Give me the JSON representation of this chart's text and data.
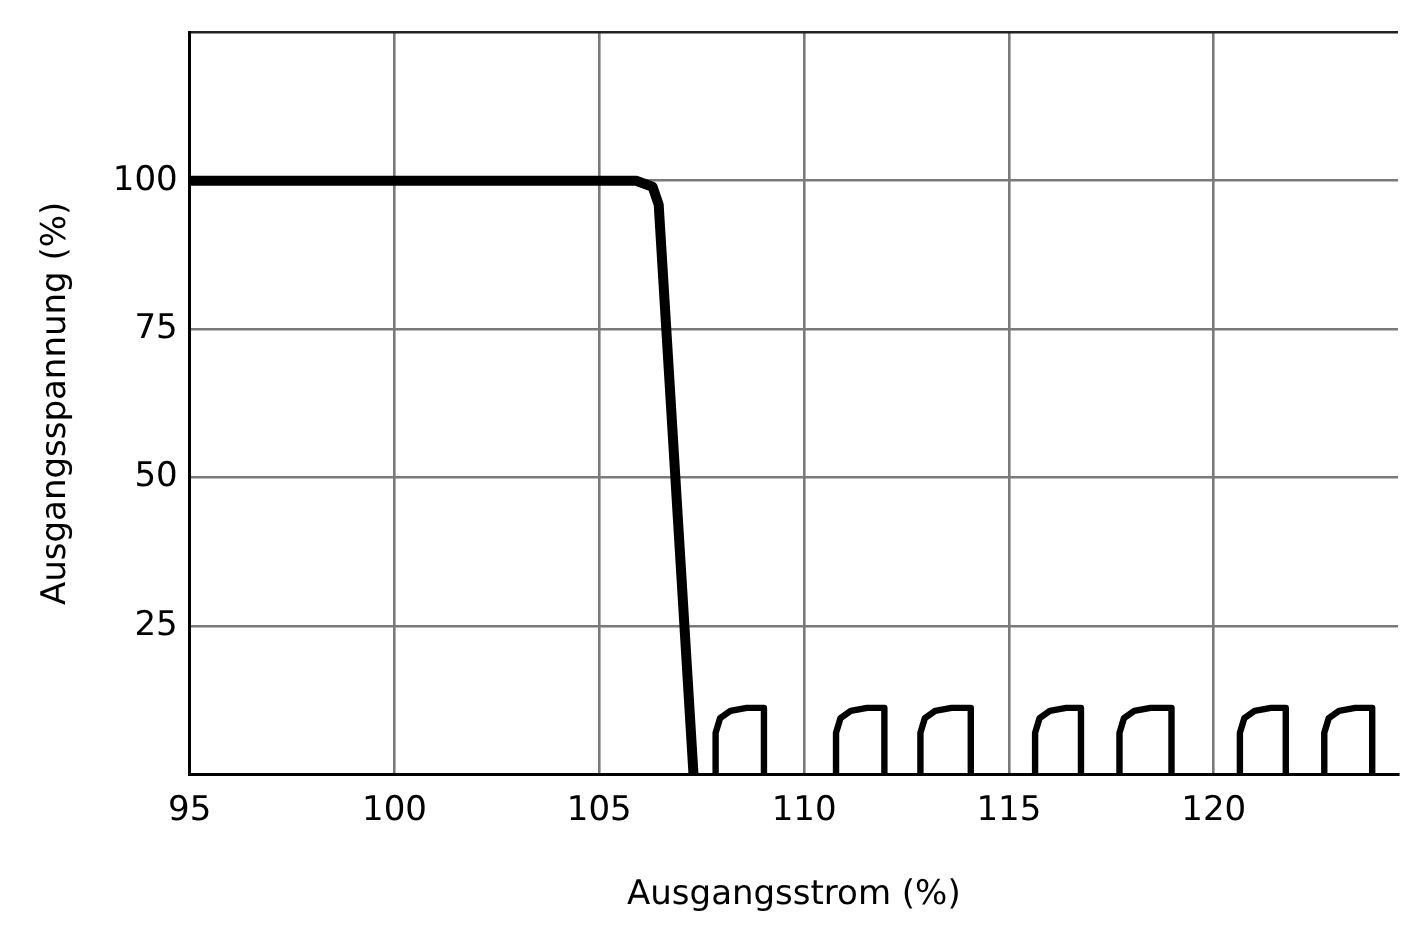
{
  "chart_data": {
    "type": "line",
    "xlabel": "Ausgangsstrom (%)",
    "ylabel": "Ausgangsspannung (%)",
    "xlim": [
      95,
      124.5
    ],
    "xticks": [
      95,
      100,
      105,
      110,
      115,
      120
    ],
    "ylim": [
      0,
      125
    ],
    "yticks": [
      25,
      50,
      75,
      100,
      {
        "value": 125,
        "label": null
      }
    ],
    "grid": true,
    "legend": false,
    "marker": "none",
    "line_style": "solid",
    "series": [
      {
        "color": "#000000",
        "x": [
          95,
          105.9,
          106.3,
          106.45,
          107.3
        ],
        "values": [
          100,
          100,
          99,
          96,
          0
        ]
      },
      {
        "color": "#000000",
        "x": [
          107.84,
          107.84,
          107.95,
          108.2,
          108.6,
          109.02,
          109.02,
          109.5,
          110.78,
          110.78,
          110.89,
          111.14,
          111.54,
          111.96,
          111.96,
          112.4,
          112.84,
          112.84,
          112.95,
          113.2,
          113.6,
          114.07,
          114.07,
          114.8,
          115.64,
          115.64,
          115.75,
          116.0,
          116.4,
          116.76,
          116.76,
          117.2,
          117.7,
          117.7,
          117.81,
          118.06,
          118.46,
          118.97,
          118.97,
          119.8,
          120.64,
          120.64,
          120.75,
          121.0,
          121.4,
          121.76,
          121.76,
          122.2,
          122.7,
          122.7,
          122.81,
          123.06,
          123.46,
          123.87,
          123.87
        ],
        "values": [
          0,
          7,
          9.5,
          10.7,
          11.2,
          11.2,
          0,
          null,
          0,
          7,
          9.5,
          10.7,
          11.2,
          11.2,
          0,
          null,
          0,
          7,
          9.5,
          10.7,
          11.2,
          11.2,
          0,
          null,
          0,
          7,
          9.5,
          10.7,
          11.2,
          11.2,
          0,
          null,
          0,
          7,
          9.5,
          10.7,
          11.2,
          11.2,
          0,
          null,
          0,
          7,
          9.5,
          10.7,
          11.2,
          11.2,
          0,
          null,
          0,
          7,
          9.5,
          10.7,
          11.2,
          11.2,
          0
        ]
      }
    ]
  }
}
